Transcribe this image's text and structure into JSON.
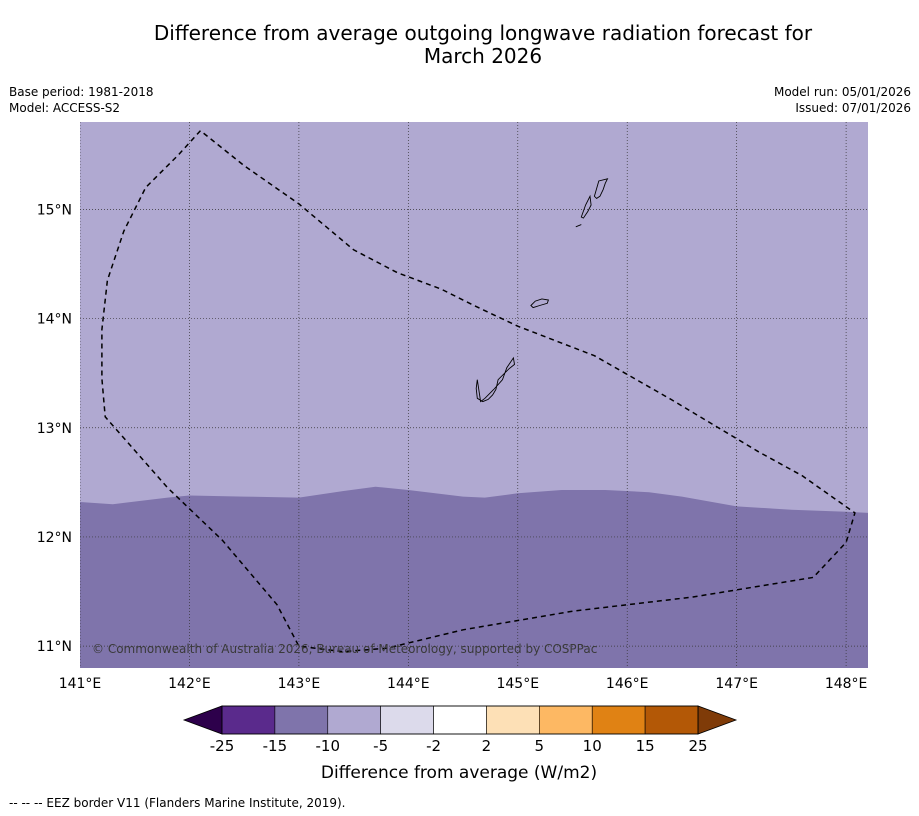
{
  "title": "Difference from average outgoing longwave radiation forecast for March 2026",
  "title_line1": "Difference from average outgoing longwave radiation forecast for",
  "title_line2": "March 2026",
  "meta": {
    "base_period": "Base period: 1981-2018",
    "model": "Model: ACCESS-S2",
    "model_run": "Model run: 05/01/2026",
    "issued": "Issued: 07/01/2026"
  },
  "map": {
    "lon_range": [
      141,
      148.2
    ],
    "lat_range": [
      10.8,
      15.8
    ],
    "lon_ticks": [
      141,
      142,
      143,
      144,
      145,
      146,
      147,
      148
    ],
    "lon_tick_labels": [
      "141°E",
      "142°E",
      "143°E",
      "144°E",
      "145°E",
      "146°E",
      "147°E",
      "148°E"
    ],
    "lat_ticks": [
      11,
      12,
      13,
      14,
      15
    ],
    "lat_tick_labels": [
      "11°N",
      "12°N",
      "13°N",
      "14°N",
      "15°N"
    ],
    "regions": [
      {
        "name": "north",
        "band": "-10 to -5",
        "color": "#b0a9d1"
      },
      {
        "name": "south",
        "band": "-15 to -10",
        "color": "#7f74ab"
      }
    ],
    "boundary_lat_profile": {
      "lon": [
        141.0,
        141.3,
        141.8,
        142.0,
        142.5,
        143.0,
        143.4,
        143.7,
        144.0,
        144.5,
        144.7,
        145.0,
        145.4,
        145.8,
        146.2,
        146.5,
        147.0,
        147.5,
        148.0,
        148.2
      ],
      "lat": [
        12.32,
        12.3,
        12.36,
        12.38,
        12.37,
        12.36,
        12.42,
        12.46,
        12.43,
        12.37,
        12.36,
        12.4,
        12.43,
        12.43,
        12.41,
        12.37,
        12.28,
        12.25,
        12.23,
        12.22
      ]
    },
    "eez_border": {
      "lon": [
        142.1,
        141.9,
        141.6,
        141.4,
        141.25,
        141.2,
        141.2,
        141.23,
        141.45,
        141.8,
        142.3,
        142.8,
        143.0,
        143.4,
        143.8,
        144.5,
        145.5,
        146.6,
        147.7,
        148.0,
        148.08,
        147.6,
        147.2,
        146.4,
        145.7,
        145.0,
        144.6,
        144.3,
        143.9,
        143.5,
        143.0,
        142.5,
        142.1
      ],
      "lat": [
        15.72,
        15.5,
        15.2,
        14.8,
        14.35,
        13.9,
        13.45,
        13.1,
        12.85,
        12.45,
        11.97,
        11.38,
        11.0,
        10.95,
        10.98,
        11.15,
        11.32,
        11.45,
        11.63,
        11.95,
        12.22,
        12.56,
        12.78,
        13.26,
        13.66,
        13.93,
        14.12,
        14.27,
        14.42,
        14.63,
        15.05,
        15.4,
        15.72
      ]
    },
    "islands": [
      {
        "name": "Guam",
        "lon": [
          144.66,
          144.7,
          144.78,
          144.86,
          144.9,
          144.96,
          144.97,
          144.92,
          144.82,
          144.8,
          144.77,
          144.73,
          144.68,
          144.63,
          144.62,
          144.63,
          144.66
        ],
        "lat": [
          13.24,
          13.27,
          13.35,
          13.44,
          13.55,
          13.64,
          13.58,
          13.54,
          13.44,
          13.35,
          13.3,
          13.26,
          13.24,
          13.27,
          13.36,
          13.44,
          13.24
        ]
      },
      {
        "name": "Rota",
        "lon": [
          145.12,
          145.16,
          145.22,
          145.28,
          145.27,
          145.2,
          145.14,
          145.12
        ],
        "lat": [
          14.12,
          14.16,
          14.18,
          14.17,
          14.14,
          14.12,
          14.1,
          14.12
        ]
      },
      {
        "name": "Tinian",
        "lon": [
          145.58,
          145.62,
          145.66,
          145.67,
          145.64,
          145.6,
          145.58
        ],
        "lat": [
          14.93,
          15.04,
          15.12,
          15.04,
          14.98,
          14.92,
          14.93
        ]
      },
      {
        "name": "Saipan",
        "lon": [
          145.7,
          145.74,
          145.82,
          145.8,
          145.78,
          145.75,
          145.72,
          145.7
        ],
        "lat": [
          15.12,
          15.26,
          15.28,
          15.24,
          15.18,
          15.12,
          15.1,
          15.12
        ]
      },
      {
        "name": "Aguijan",
        "lon": [
          145.53,
          145.58
        ],
        "lat": [
          14.84,
          14.86
        ]
      }
    ],
    "copyright": "© Commonwealth of Australia 2026, Bureau of Meteorology, supported by COSPPac"
  },
  "colorbar": {
    "bounds": [
      "-25",
      "-15",
      "-10",
      "-5",
      "-2",
      "2",
      "5",
      "10",
      "15",
      "25"
    ],
    "colors": [
      "#5a2a8c",
      "#7f74ab",
      "#b0a9d1",
      "#dcdaeb",
      "#ffffff",
      "#fde0b6",
      "#fdb863",
      "#e08214",
      "#b35806"
    ],
    "extend_low_color": "#2d004b",
    "extend_high_color": "#7f3b08",
    "label": "Difference from average (W/m2)"
  },
  "footnote": "--  --  -- EEZ border V11 (Flanders Marine Institute, 2019)."
}
